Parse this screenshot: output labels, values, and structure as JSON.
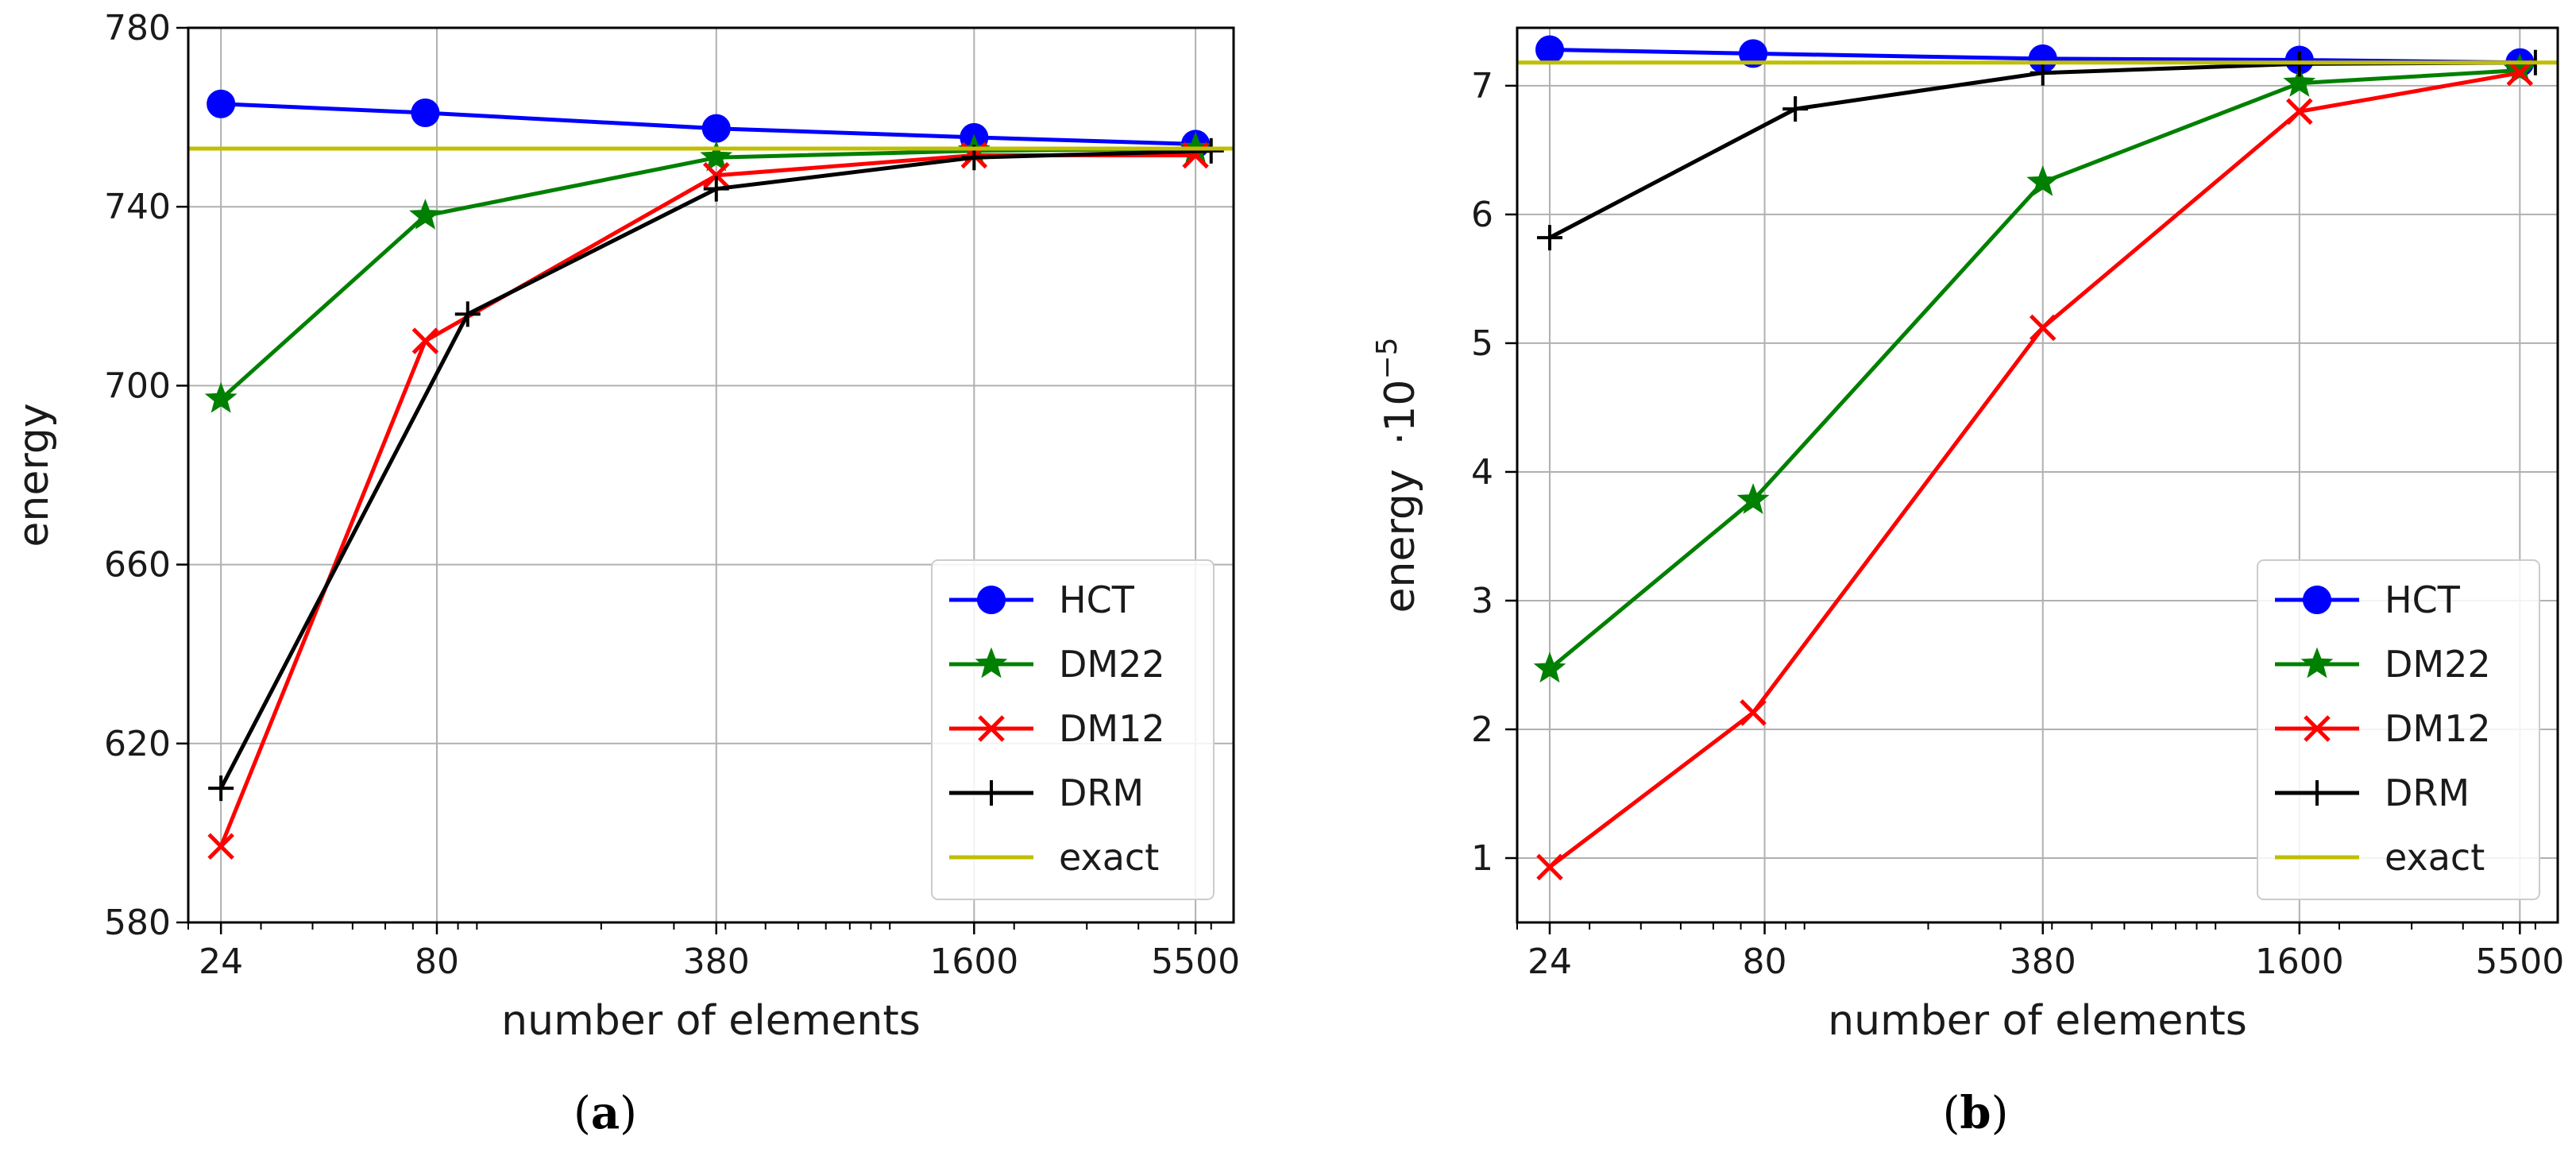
{
  "chart_data": [
    {
      "type": "line",
      "panel": "a",
      "caption": {
        "open": "(",
        "letter": "a",
        "close": ")"
      },
      "xscale": "log",
      "xticks": [
        24,
        80,
        380,
        1600,
        5500
      ],
      "xlim": [
        20,
        6800
      ],
      "yticks": [
        580,
        620,
        660,
        700,
        740,
        780
      ],
      "ylim": [
        580,
        780
      ],
      "xlabel": "number of elements",
      "ylabel": "energy",
      "grid": true,
      "legend_position": "bottom-right",
      "series": [
        {
          "name": "HCT",
          "color": "#0000ff",
          "marker": "circle",
          "x": [
            24,
            75,
            380,
            1600,
            5500
          ],
          "y": [
            763,
            761,
            757.5,
            755.5,
            754
          ]
        },
        {
          "name": "DM22",
          "color": "#008000",
          "marker": "star",
          "x": [
            24,
            75,
            380,
            1600,
            5500
          ],
          "y": [
            697,
            738,
            751,
            752.5,
            753
          ]
        },
        {
          "name": "DM12",
          "color": "#ff0000",
          "marker": "x",
          "x": [
            24,
            75,
            380,
            1600,
            5500
          ],
          "y": [
            597,
            710,
            747,
            751.5,
            751.5
          ]
        },
        {
          "name": "DRM",
          "color": "#000000",
          "marker": "plus",
          "x": [
            24,
            95,
            380,
            1600,
            6000
          ],
          "y": [
            610,
            716,
            744,
            751,
            752.5
          ]
        },
        {
          "name": "exact",
          "color": "#bfbf00",
          "marker": "none",
          "constant": 753
        }
      ]
    },
    {
      "type": "line",
      "panel": "b",
      "caption": {
        "open": "(",
        "letter": "b",
        "close": ")"
      },
      "xscale": "log",
      "xticks": [
        24,
        80,
        380,
        1600,
        5500
      ],
      "xlim": [
        20,
        6800
      ],
      "yticks": [
        1,
        2,
        3,
        4,
        5,
        6,
        7
      ],
      "ylim": [
        0.5,
        7.45
      ],
      "xlabel": "number of elements",
      "ylabel": "energy",
      "ylabel_multiplier": "·10",
      "ylabel_exponent": "−5",
      "grid": true,
      "legend_position": "bottom-right",
      "series": [
        {
          "name": "HCT",
          "color": "#0000ff",
          "marker": "circle",
          "x": [
            24,
            75,
            380,
            1600,
            5500
          ],
          "y": [
            7.28,
            7.25,
            7.21,
            7.2,
            7.18
          ]
        },
        {
          "name": "DM22",
          "color": "#008000",
          "marker": "star",
          "x": [
            24,
            75,
            380,
            1600,
            5500
          ],
          "y": [
            2.47,
            3.78,
            6.25,
            7.02,
            7.12
          ]
        },
        {
          "name": "DM12",
          "color": "#ff0000",
          "marker": "x",
          "x": [
            24,
            75,
            380,
            1600,
            5500
          ],
          "y": [
            0.93,
            2.13,
            5.12,
            6.8,
            7.1
          ]
        },
        {
          "name": "DRM",
          "color": "#000000",
          "marker": "plus",
          "x": [
            24,
            95,
            380,
            1600,
            6000
          ],
          "y": [
            5.82,
            6.82,
            7.1,
            7.17,
            7.18
          ]
        },
        {
          "name": "exact",
          "color": "#bfbf00",
          "marker": "none",
          "constant": 7.18
        }
      ]
    }
  ]
}
